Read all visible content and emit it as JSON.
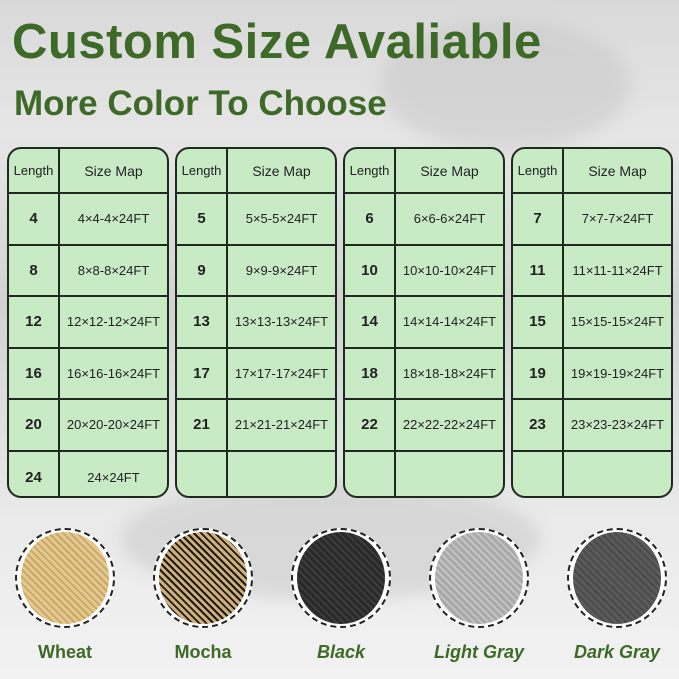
{
  "header": {
    "title": "Custom Size Avaliable",
    "subtitle": "More Color To Choose"
  },
  "tables": [
    {
      "headers": [
        "Length",
        "Size Map"
      ],
      "rows": [
        [
          "4",
          "4×4-4×24FT"
        ],
        [
          "8",
          "8×8-8×24FT"
        ],
        [
          "12",
          "12×12-12×24FT"
        ],
        [
          "16",
          "16×16-16×24FT"
        ],
        [
          "20",
          "20×20-20×24FT"
        ],
        [
          "24",
          "24×24FT"
        ]
      ]
    },
    {
      "headers": [
        "Length",
        "Size Map"
      ],
      "rows": [
        [
          "5",
          "5×5-5×24FT"
        ],
        [
          "9",
          "9×9-9×24FT"
        ],
        [
          "13",
          "13×13-13×24FT"
        ],
        [
          "17",
          "17×17-17×24FT"
        ],
        [
          "21",
          "21×21-21×24FT"
        ],
        [
          "",
          ""
        ]
      ]
    },
    {
      "headers": [
        "Length",
        "Size Map"
      ],
      "rows": [
        [
          "6",
          "6×6-6×24FT"
        ],
        [
          "10",
          "10×10-10×24FT"
        ],
        [
          "14",
          "14×14-14×24FT"
        ],
        [
          "18",
          "18×18-18×24FT"
        ],
        [
          "22",
          "22×22-22×24FT"
        ],
        [
          "",
          ""
        ]
      ]
    },
    {
      "headers": [
        "Length",
        "Size Map"
      ],
      "rows": [
        [
          "7",
          "7×7-7×24FT"
        ],
        [
          "11",
          "11×11-11×24FT"
        ],
        [
          "15",
          "15×15-15×24FT"
        ],
        [
          "19",
          "19×19-19×24FT"
        ],
        [
          "23",
          "23×23-23×24FT"
        ],
        [
          "",
          ""
        ]
      ]
    }
  ],
  "colors": [
    {
      "label": "Wheat",
      "swatch": "#e3c98f",
      "accent": "#c9a765",
      "italic": false
    },
    {
      "label": "Mocha",
      "swatch": "#cfae78",
      "accent": "#1a1a1a",
      "italic": false
    },
    {
      "label": "Black",
      "swatch": "#2a2a2a",
      "accent": "#3d3d3d",
      "italic": true
    },
    {
      "label": "Light Gray",
      "swatch": "#a9a9a9",
      "accent": "#c4c4c4",
      "italic": true
    },
    {
      "label": "Dark Gray",
      "swatch": "#5a5a5a",
      "accent": "#4a4a4a",
      "italic": true
    }
  ],
  "theme": {
    "title_color": "#3d6a27",
    "table_fill": "#c8ebc6"
  }
}
